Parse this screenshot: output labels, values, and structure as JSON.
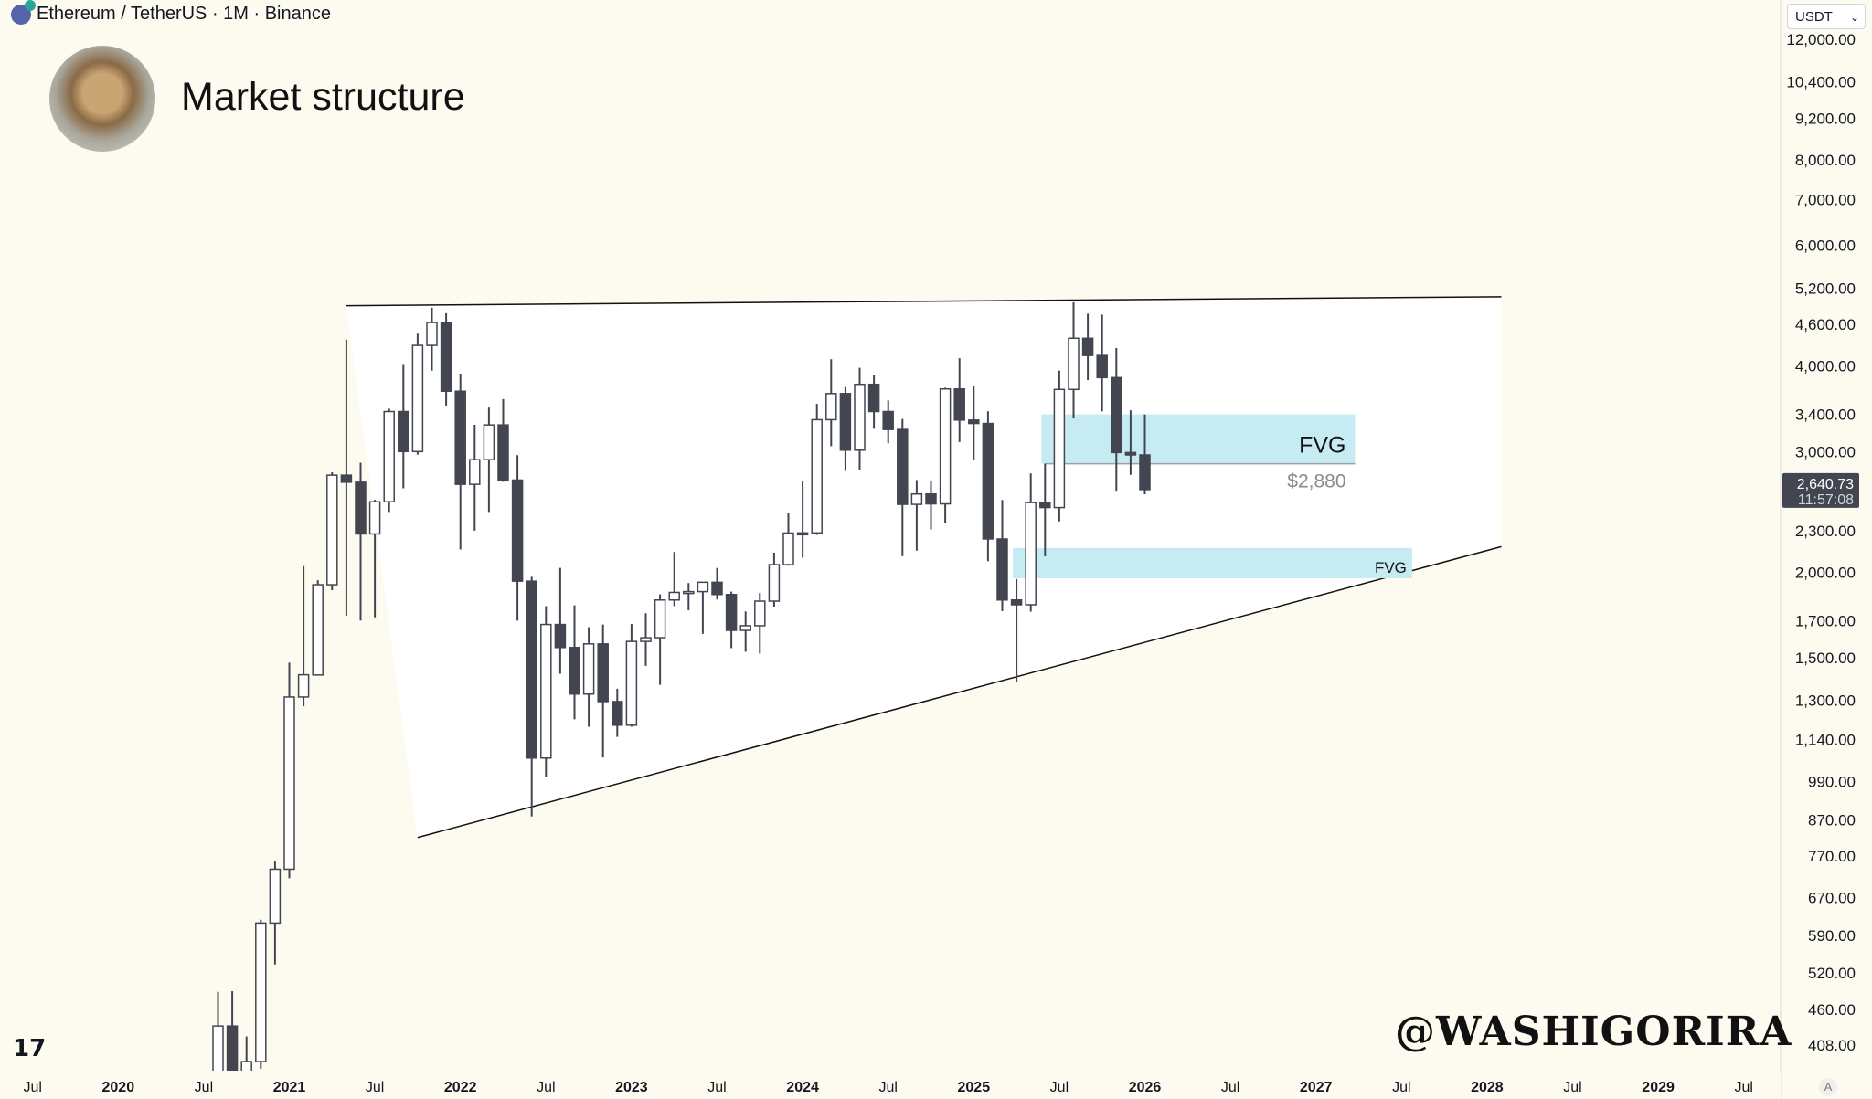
{
  "header": {
    "symbol_line": "Ethereum / TetherUS · 1M · Binance",
    "title": "Market structure",
    "currency_button": "USDT",
    "watermark": "@WASHIGORIRA",
    "auto_scale": "A",
    "logo": "TV"
  },
  "colors": {
    "background": "#fdfbf0",
    "triangle_fill": "#ffffff",
    "bear": "#434651",
    "bull": "#ffffff",
    "fvg": "#c6ebf2",
    "price_tag": "#434651"
  },
  "chart_data": {
    "type": "candlestick",
    "yscale": "log",
    "ylim": [
      395,
      12600
    ],
    "y_ticks": [
      "12,000.00",
      "10,400.00",
      "9,200.00",
      "8,000.00",
      "7,000.00",
      "6,000.00",
      "5,200.00",
      "4,600.00",
      "4,000.00",
      "3,400.00",
      "3,000.00",
      "2,300.00",
      "2,000.00",
      "1,700.00",
      "1,500.00",
      "1,300.00",
      "1,140.00",
      "990.00",
      "870.00",
      "770.00",
      "670.00",
      "590.00",
      "520.00",
      "460.00",
      "408.00"
    ],
    "x_ticks": [
      "Jul",
      "2020",
      "Jul",
      "2021",
      "Jul",
      "2022",
      "Jul",
      "2023",
      "Jul",
      "2024",
      "Jul",
      "2025",
      "Jul",
      "2026",
      "Jul",
      "2027",
      "Jul",
      "2028",
      "Jul",
      "2029",
      "Jul"
    ],
    "start_month": "2020-08",
    "ohlc": [
      [
        346,
        488,
        335,
        435
      ],
      [
        435,
        489,
        308,
        359
      ],
      [
        359,
        420,
        335,
        386
      ],
      [
        386,
        622,
        373,
        615
      ],
      [
        615,
        756,
        535,
        737
      ],
      [
        737,
        1476,
        715,
        1315
      ],
      [
        1315,
        2042,
        1275,
        1417
      ],
      [
        1416,
        1947,
        1437,
        1918
      ],
      [
        1918,
        2799,
        1883,
        2772
      ],
      [
        2772,
        4372,
        1729,
        2707
      ],
      [
        2707,
        2891,
        1700,
        2275
      ],
      [
        2275,
        2551,
        1719,
        2535
      ],
      [
        2535,
        3466,
        2450,
        3433
      ],
      [
        3433,
        4027,
        2652,
        3001
      ],
      [
        3001,
        4460,
        2970,
        4288
      ],
      [
        4288,
        4868,
        3938,
        4631
      ],
      [
        4631,
        4778,
        3503,
        3676
      ],
      [
        3676,
        3900,
        2159,
        2688
      ],
      [
        2688,
        3283,
        2300,
        2920
      ],
      [
        2920,
        3479,
        2450,
        3282
      ],
      [
        3282,
        3580,
        2711,
        2727
      ],
      [
        2727,
        2965,
        1700,
        1941
      ],
      [
        1941,
        1970,
        880,
        1071
      ],
      [
        1071,
        1785,
        1006,
        1678
      ],
      [
        1678,
        2030,
        1422,
        1553
      ],
      [
        1553,
        1790,
        1220,
        1328
      ],
      [
        1328,
        1663,
        1190,
        1572
      ],
      [
        1572,
        1678,
        1073,
        1295
      ],
      [
        1295,
        1352,
        1150,
        1196
      ],
      [
        1196,
        1680,
        1190,
        1585
      ],
      [
        1585,
        1743,
        1460,
        1605
      ],
      [
        1605,
        1857,
        1370,
        1822
      ],
      [
        1822,
        2141,
        1785,
        1869
      ],
      [
        1869,
        1929,
        1760,
        1874
      ],
      [
        1874,
        1930,
        1626,
        1934
      ],
      [
        1934,
        2029,
        1825,
        1856
      ],
      [
        1856,
        1874,
        1550,
        1645
      ],
      [
        1645,
        1753,
        1531,
        1671
      ],
      [
        1671,
        1865,
        1521,
        1815
      ],
      [
        1815,
        2136,
        1782,
        2052
      ],
      [
        2052,
        2445,
        2044,
        2282
      ],
      [
        2282,
        2717,
        2100,
        2283
      ],
      [
        2283,
        3523,
        2268,
        3340
      ],
      [
        3340,
        4093,
        3056,
        3647
      ],
      [
        3647,
        3730,
        2812,
        3015
      ],
      [
        3015,
        3977,
        2817,
        3762
      ],
      [
        3762,
        3887,
        3240,
        3433
      ],
      [
        3433,
        3563,
        3086,
        3232
      ],
      [
        3232,
        3349,
        2111,
        2513
      ],
      [
        2513,
        2727,
        2151,
        2602
      ],
      [
        2602,
        2722,
        2310,
        2517
      ],
      [
        2517,
        3720,
        2357,
        3704
      ],
      [
        3704,
        4107,
        3099,
        3336
      ],
      [
        3336,
        3744,
        2923,
        3298
      ],
      [
        3298,
        3437,
        2076,
        2237
      ],
      [
        2237,
        2550,
        1755,
        1822
      ],
      [
        1822,
        1955,
        1385,
        1793
      ],
      [
        1793,
        2788,
        1752,
        2528
      ],
      [
        2528,
        2880,
        2111,
        2486
      ],
      [
        2486,
        3941,
        2373,
        3698
      ],
      [
        3698,
        4957,
        3354,
        4392
      ],
      [
        4392,
        4770,
        3815,
        4145
      ],
      [
        4145,
        4755,
        3436,
        3848
      ],
      [
        3848,
        4250,
        2623,
        2991
      ],
      [
        2991,
        3447,
        2775,
        2967
      ],
      [
        2967,
        3400,
        2600,
        2640.73
      ]
    ],
    "last_price": "2,640.73",
    "countdown": "11:57:08",
    "annotations": {
      "triangle": {
        "top": [
          [
            "2021-05",
            4900
          ],
          [
            "2028-02",
            5050
          ]
        ],
        "bottom": [
          [
            "2021-10",
            820
          ],
          [
            "2028-02",
            2180
          ]
        ]
      },
      "fvg_upper": {
        "label": "FVG",
        "from": "2025-06",
        "to": "2027-04",
        "low": 2880,
        "high": 3400,
        "level_label": "$2,880"
      },
      "fvg_lower": {
        "label": "FVG",
        "from": "2025-04",
        "to": "2027-08",
        "low": 1960,
        "high": 2170
      }
    }
  }
}
